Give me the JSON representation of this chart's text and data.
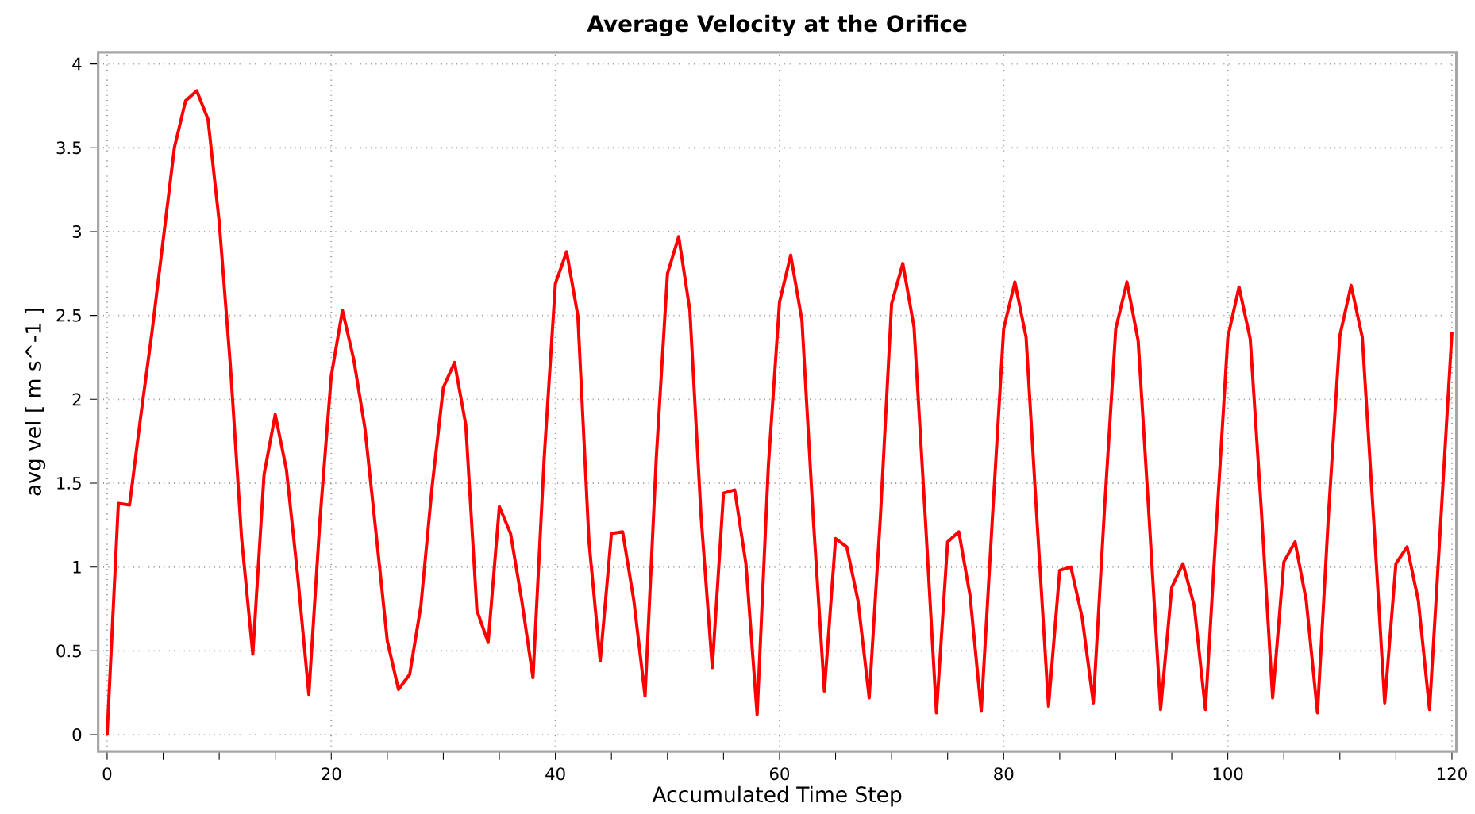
{
  "chart_data": {
    "type": "line",
    "title": "Average Velocity at the Orifice",
    "xlabel": "Accumulated Time Step",
    "ylabel": "avg vel [ m s^-1 ]",
    "x": [
      0,
      1,
      2,
      3,
      4,
      5,
      6,
      7,
      8,
      9,
      10,
      11,
      12,
      13,
      14,
      15,
      16,
      17,
      18,
      19,
      20,
      21,
      22,
      23,
      24,
      25,
      26,
      27,
      28,
      29,
      30,
      31,
      32,
      33,
      34,
      35,
      36,
      37,
      38,
      39,
      40,
      41,
      42,
      43,
      44,
      45,
      46,
      47,
      48,
      49,
      50,
      51,
      52,
      53,
      54,
      55,
      56,
      57,
      58,
      59,
      60,
      61,
      62,
      63,
      64,
      65,
      66,
      67,
      68,
      69,
      70,
      71,
      72,
      73,
      74,
      75,
      76,
      77,
      78,
      79,
      80,
      81,
      82,
      83,
      84,
      85,
      86,
      87,
      88,
      89,
      90,
      91,
      92,
      93,
      94,
      95,
      96,
      97,
      98,
      99,
      100,
      101,
      102,
      103,
      104,
      105,
      106,
      107,
      108,
      109,
      110,
      111,
      112,
      113,
      114,
      115,
      116,
      117,
      118,
      119,
      120
    ],
    "series": [
      {
        "color": "#ff0000",
        "values": [
          0,
          1.38,
          1.37,
          1.9,
          2.4,
          2.95,
          3.5,
          3.78,
          3.84,
          3.67,
          3.06,
          2.2,
          1.17,
          0.48,
          1.55,
          1.91,
          1.58,
          0.95,
          0.24,
          1.29,
          2.14,
          2.53,
          2.24,
          1.83,
          1.2,
          0.56,
          0.27,
          0.36,
          0.77,
          1.48,
          2.07,
          2.22,
          1.85,
          0.74,
          0.55,
          1.36,
          1.2,
          0.8,
          0.34,
          1.65,
          2.69,
          2.88,
          2.5,
          1.15,
          0.44,
          1.2,
          1.21,
          0.8,
          0.23,
          1.65,
          2.75,
          2.97,
          2.53,
          1.3,
          0.4,
          1.44,
          1.46,
          1.02,
          0.12,
          1.6,
          2.58,
          2.86,
          2.47,
          1.3,
          0.26,
          1.17,
          1.12,
          0.8,
          0.22,
          1.3,
          2.57,
          2.81,
          2.43,
          1.3,
          0.13,
          1.15,
          1.21,
          0.83,
          0.14,
          1.3,
          2.42,
          2.7,
          2.37,
          1.25,
          0.17,
          0.98,
          1.0,
          0.7,
          0.19,
          1.35,
          2.42,
          2.7,
          2.35,
          1.27,
          0.15,
          0.88,
          1.02,
          0.77,
          0.15,
          1.27,
          2.37,
          2.67,
          2.36,
          1.33,
          0.22,
          1.03,
          1.15,
          0.8,
          0.13,
          1.33,
          2.38,
          2.68,
          2.37,
          1.3,
          0.19,
          1.02,
          1.12,
          0.8,
          0.15,
          1.27,
          2.4
        ]
      }
    ],
    "xlim": [
      -0.8,
      120.4
    ],
    "ylim": [
      -0.1,
      4.07
    ],
    "xticks": [
      0,
      {
        "value": 5,
        "label": null
      },
      {
        "value": 10,
        "label": null
      },
      {
        "value": 15,
        "label": null
      },
      20,
      {
        "value": 25,
        "label": null
      },
      {
        "value": 30,
        "label": null
      },
      {
        "value": 35,
        "label": null
      },
      40,
      {
        "value": 45,
        "label": null
      },
      {
        "value": 50,
        "label": null
      },
      {
        "value": 55,
        "label": null
      },
      60,
      {
        "value": 65,
        "label": null
      },
      {
        "value": 70,
        "label": null
      },
      {
        "value": 75,
        "label": null
      },
      80,
      {
        "value": 85,
        "label": null
      },
      {
        "value": 90,
        "label": null
      },
      {
        "value": 95,
        "label": null
      },
      100,
      {
        "value": 105,
        "label": null
      },
      {
        "value": 110,
        "label": null
      },
      {
        "value": 115,
        "label": null
      },
      120
    ],
    "yticks": [
      0,
      0.5,
      1,
      1.5,
      2,
      2.5,
      3,
      3.5,
      4
    ],
    "grid": true,
    "legend": false,
    "marker": "none",
    "line_style": "solid"
  }
}
